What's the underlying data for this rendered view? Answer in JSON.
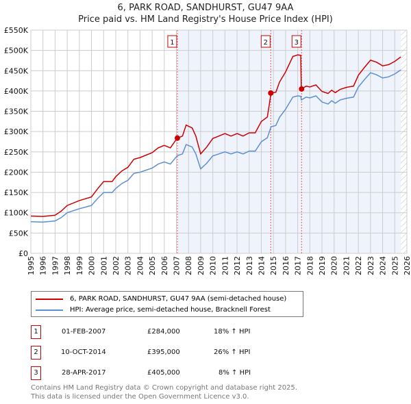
{
  "chart_data": {
    "type": "line",
    "title": "6, PARK ROAD, SANDHURST, GU47 9AA",
    "subtitle": "Price paid vs. HM Land Registry's House Price Index (HPI)",
    "xlim": [
      1995,
      2026
    ],
    "ylim": [
      0,
      550000
    ],
    "yticks": [
      0,
      50000,
      100000,
      150000,
      200000,
      250000,
      300000,
      350000,
      400000,
      450000,
      500000,
      550000
    ],
    "ytick_labels": [
      "£0",
      "£50K",
      "£100K",
      "£150K",
      "£200K",
      "£250K",
      "£300K",
      "£350K",
      "£400K",
      "£450K",
      "£500K",
      "£550K"
    ],
    "xticks": [
      "1995",
      "1996",
      "1997",
      "1998",
      "1999",
      "2000",
      "2001",
      "2002",
      "2003",
      "2004",
      "2005",
      "2006",
      "2007",
      "2008",
      "2009",
      "2010",
      "2011",
      "2012",
      "2013",
      "2014",
      "2015",
      "2016",
      "2017",
      "2018",
      "2019",
      "2020",
      "2021",
      "2022",
      "2023",
      "2024",
      "2025",
      "2026"
    ],
    "grid": true,
    "x": [
      1995,
      1996,
      1997,
      1997.5,
      1998,
      1999,
      2000,
      2000.5,
      2001,
      2001.7,
      2002,
      2002.5,
      2003,
      2003.5,
      2004,
      2005,
      2005.5,
      2006,
      2006.5,
      2007,
      2007.1,
      2007.5,
      2007.8,
      2008.3,
      2008.6,
      2009,
      2009.5,
      2010,
      2010.5,
      2011,
      2011.5,
      2012,
      2012.5,
      2013,
      2013.5,
      2014,
      2014.5,
      2014.8,
      2015.2,
      2015.5,
      2016,
      2016.6,
      2017,
      2017.25,
      2017.3,
      2017.7,
      2018,
      2018.5,
      2019,
      2019.5,
      2019.8,
      2020.1,
      2020.5,
      2021,
      2021.6,
      2022,
      2022.5,
      2023,
      2023.5,
      2024,
      2024.5,
      2025,
      2025.5
    ],
    "series": [
      {
        "name": "6, PARK ROAD, SANDHURST, GU47 9AA (semi-detached house)",
        "color": "#cc0000",
        "values": [
          92,
          91,
          94,
          104,
          118,
          130,
          139,
          159,
          177,
          177,
          189,
          203,
          212,
          232,
          236,
          248,
          260,
          266,
          260,
          281,
          284,
          289,
          316,
          309,
          289,
          245,
          262,
          283,
          289,
          295,
          289,
          295,
          289,
          297,
          297,
          325,
          336,
          395,
          397,
          422,
          447,
          485,
          489,
          488,
          405,
          412,
          410,
          415,
          399,
          394,
          402,
          396,
          404,
          409,
          412,
          439,
          458,
          476,
          471,
          462,
          465,
          473,
          484
        ]
      },
      {
        "name": "HPI: Average price, semi-detached house, Bracknell Forest",
        "color": "#5b8fd4",
        "values": [
          78,
          77,
          80,
          88,
          100,
          110,
          118,
          135,
          150,
          150,
          160,
          172,
          180,
          197,
          200,
          210,
          220,
          225,
          220,
          238,
          241,
          245,
          268,
          262,
          245,
          208,
          222,
          240,
          245,
          250,
          245,
          250,
          245,
          252,
          252,
          275,
          285,
          312,
          315,
          335,
          355,
          385,
          388,
          387,
          378,
          385,
          383,
          388,
          373,
          368,
          376,
          370,
          378,
          382,
          385,
          410,
          428,
          445,
          440,
          432,
          435,
          442,
          452
        ]
      }
    ],
    "value_unit": "thousands GBP",
    "sales": [
      {
        "label": "1",
        "x": 2007.08,
        "value": 284
      },
      {
        "label": "2",
        "x": 2014.78,
        "value": 395
      },
      {
        "label": "3",
        "x": 2017.32,
        "value": 405
      }
    ],
    "shade_from": 2007.08,
    "hatch_from": 2025.5
  },
  "legend": {
    "red": "6, PARK ROAD, SANDHURST, GU47 9AA (semi-detached house)",
    "blue": "HPI: Average price, semi-detached house, Bracknell Forest"
  },
  "transactions": [
    {
      "num": "1",
      "date": "01-FEB-2007",
      "price": "£284,000",
      "hpi": "18% ↑ HPI"
    },
    {
      "num": "2",
      "date": "10-OCT-2014",
      "price": "£395,000",
      "hpi": "26% ↑ HPI"
    },
    {
      "num": "3",
      "date": "28-APR-2017",
      "price": "£405,000",
      "hpi": "8% ↑ HPI"
    }
  ],
  "footer": {
    "line1": "Contains HM Land Registry data © Crown copyright and database right 2025.",
    "line2": "This data is licensed under the Open Government Licence v3.0."
  }
}
